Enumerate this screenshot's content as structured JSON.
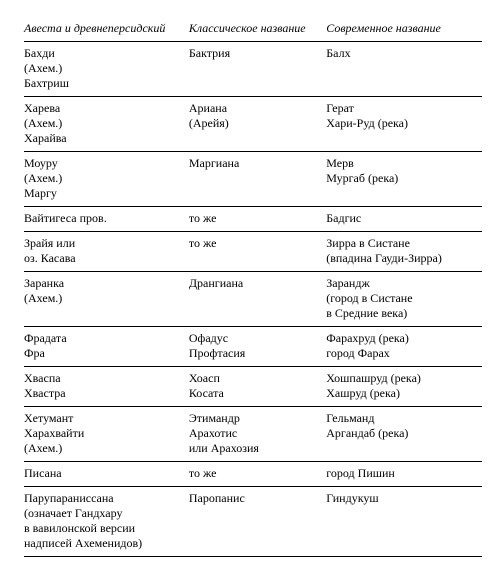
{
  "table": {
    "headers": [
      "Авеста\nи древнеперсидский",
      "Классическое\nназвание",
      "Современное\nназвание"
    ],
    "rows": [
      {
        "c1": "Бахди\n(Ахем.)\nБахтриш",
        "c2": "Бактрия",
        "c3": "Балх"
      },
      {
        "c1": "Харева\n(Ахем.)\nХарайва",
        "c2": "Ариана\n(Арейя)",
        "c3": "Герат\nХари-Руд (река)"
      },
      {
        "c1": "Моуру\n(Ахем.)\nМаргу",
        "c2": "Маргиана",
        "c3": "Мерв\nМургаб (река)"
      },
      {
        "c1": "Вайтигеса пров.",
        "c2": "то же",
        "c3": "Бадгис"
      },
      {
        "c1": "Зрайя или\nоз. Касава",
        "c2": "то же",
        "c3": "Зирра в Систане\n(впадина Гауди-Зирра)"
      },
      {
        "c1": "Заранка\n(Ахем.)",
        "c2": "Дрангиана",
        "c3": "Зарандж\n(город в Систане\nв Средние века)"
      },
      {
        "c1": "Фрадата\nФра",
        "c2": "Офадус\nПрофтасия",
        "c3": "Фарахруд (река)\nгород Фарах"
      },
      {
        "c1": "Хваспа\nХвастра",
        "c2": "Хоасп\nКосата",
        "c3": "Хошпашруд (река)\nХашруд (река)"
      },
      {
        "c1": "Хетумант\nХарахвайти\n(Ахем.)",
        "c2": "Этимандр\nАрахотис\nили Арахозия",
        "c3": "Гельманд\nАргандаб (река)"
      },
      {
        "c1": "Писана",
        "c2": "то же",
        "c3": "город Пишин"
      },
      {
        "c1": "Парупараниссана\n(означает Гандхару\nв вавилонской версии\nнадписей Ахеменидов)",
        "c2": "Паропанис",
        "c3": "Гиндукуш"
      }
    ]
  }
}
